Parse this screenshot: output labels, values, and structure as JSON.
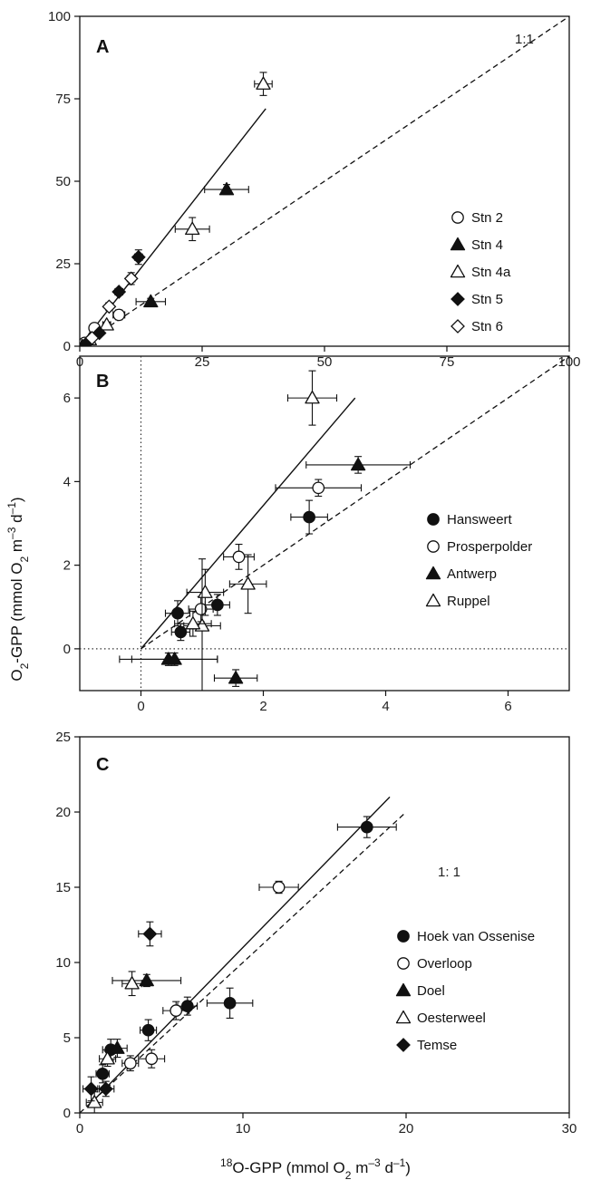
{
  "y_axis_title": {
    "base": "O",
    "sub": "2",
    "rest": "-GPP (mmol O",
    "sub2": "2",
    "rest2": " m",
    "sup": "–3",
    "rest3": " d",
    "sup2": "–1",
    "end": ")"
  },
  "x_axis_title": {
    "sup": "18",
    "base": "O-GPP (mmol O",
    "sub": "2",
    "rest": " m",
    "sup2": "–3",
    "rest2": " d",
    "sup3": "–1",
    "end": ")"
  },
  "chart_data": [
    {
      "panel": "A",
      "type": "scatter",
      "xlim": [
        0,
        100
      ],
      "ylim": [
        0,
        100
      ],
      "x_ticks": [
        0,
        25,
        50,
        75,
        100
      ],
      "y_ticks": [
        0,
        25,
        50,
        75,
        100
      ],
      "reference_line": {
        "label": "1:1",
        "slope": 1,
        "style": "dashed",
        "x_range": [
          0,
          100
        ]
      },
      "regression_line": {
        "from": [
          0,
          0
        ],
        "to": [
          38,
          72
        ],
        "style": "solid"
      },
      "legend": {
        "position": "right",
        "entries": [
          {
            "name": "Stn 2",
            "marker": "circle-open"
          },
          {
            "name": "Stn 4",
            "marker": "triangle-filled"
          },
          {
            "name": "Stn 4a",
            "marker": "triangle-open"
          },
          {
            "name": "Stn 5",
            "marker": "diamond-filled"
          },
          {
            "name": "Stn 6",
            "marker": "diamond-open"
          }
        ]
      },
      "series": [
        {
          "name": "Stn 2",
          "marker": "circle-open",
          "points": [
            {
              "x": 3,
              "y": 5.5,
              "xerr": 0.8,
              "yerr": 1.2
            },
            {
              "x": 8,
              "y": 9.5,
              "xerr": 1.2,
              "yerr": 1.5
            },
            {
              "x": 1,
              "y": 1,
              "xerr": 0.5,
              "yerr": 0.5
            }
          ]
        },
        {
          "name": "Stn 4",
          "marker": "triangle-filled",
          "points": [
            {
              "x": 30,
              "y": 47.5,
              "xerr": 4.5,
              "yerr": 1.5
            },
            {
              "x": 14.5,
              "y": 13.5,
              "xerr": 3,
              "yerr": 1
            },
            {
              "x": 0.5,
              "y": 0,
              "xerr": 0.4,
              "yerr": 0.4
            }
          ]
        },
        {
          "name": "Stn 4a",
          "marker": "triangle-open",
          "points": [
            {
              "x": 37.5,
              "y": 79.5,
              "xerr": 1.8,
              "yerr": 3.5
            },
            {
              "x": 23,
              "y": 35.5,
              "xerr": 3.5,
              "yerr": 3.5
            },
            {
              "x": 5.5,
              "y": 6.5,
              "xerr": 0.8,
              "yerr": 0.8
            },
            {
              "x": 2,
              "y": 2,
              "xerr": 0.5,
              "yerr": 0.5
            }
          ]
        },
        {
          "name": "Stn 5",
          "marker": "diamond-filled",
          "points": [
            {
              "x": 12,
              "y": 27,
              "xerr": 0.8,
              "yerr": 2.2
            },
            {
              "x": 8,
              "y": 16.5,
              "xerr": 0.8,
              "yerr": 1
            },
            {
              "x": 4,
              "y": 4,
              "xerr": 0.5,
              "yerr": 0.5
            },
            {
              "x": 1.5,
              "y": 1,
              "xerr": 0.5,
              "yerr": 0.5
            }
          ]
        },
        {
          "name": "Stn 6",
          "marker": "diamond-open",
          "points": [
            {
              "x": 10.5,
              "y": 20.5,
              "xerr": 0.8,
              "yerr": 1.8
            },
            {
              "x": 6,
              "y": 12,
              "xerr": 0.7,
              "yerr": 1.2
            },
            {
              "x": 2.5,
              "y": 2.5,
              "xerr": 0.5,
              "yerr": 0.5
            }
          ]
        }
      ]
    },
    {
      "panel": "B",
      "type": "scatter",
      "xlim": [
        -1,
        7
      ],
      "ylim": [
        -1,
        7
      ],
      "x_ticks": [
        0,
        2,
        4,
        6
      ],
      "y_ticks": [
        0,
        2,
        4,
        6
      ],
      "zero_lines": "dotted",
      "reference_line": {
        "label": "",
        "slope": 1,
        "style": "dashed",
        "x_range": [
          0,
          7
        ]
      },
      "regression_line": {
        "from": [
          0,
          0
        ],
        "to": [
          3.5,
          6
        ],
        "style": "solid"
      },
      "legend": {
        "position": "right",
        "entries": [
          {
            "name": "Hansweert",
            "marker": "circle-filled"
          },
          {
            "name": "Prosperpolder",
            "marker": "circle-open"
          },
          {
            "name": "Antwerp",
            "marker": "triangle-filled"
          },
          {
            "name": "Ruppel",
            "marker": "triangle-open"
          }
        ]
      },
      "series": [
        {
          "name": "Hansweert",
          "marker": "circle-filled",
          "points": [
            {
              "x": 2.75,
              "y": 3.15,
              "xerr": 0.3,
              "yerr": 0.4
            },
            {
              "x": 1.25,
              "y": 1.05,
              "xerr": 0.2,
              "yerr": 0.25
            },
            {
              "x": 0.6,
              "y": 0.85,
              "xerr": 0.2,
              "yerr": 0.3
            },
            {
              "x": 0.65,
              "y": 0.4,
              "xerr": 0.15,
              "yerr": 0.2
            }
          ]
        },
        {
          "name": "Prosperpolder",
          "marker": "circle-open",
          "points": [
            {
              "x": 2.9,
              "y": 3.85,
              "xerr": 0.7,
              "yerr": 0.2
            },
            {
              "x": 1.6,
              "y": 2.2,
              "xerr": 0.25,
              "yerr": 0.3
            },
            {
              "x": 0.98,
              "y": 0.95,
              "xerr": 0.2,
              "yerr": 0.3
            }
          ]
        },
        {
          "name": "Antwerp",
          "marker": "triangle-filled",
          "points": [
            {
              "x": 3.55,
              "y": 4.4,
              "xerr": 0.85,
              "yerr": 0.2
            },
            {
              "x": 1.55,
              "y": -0.7,
              "xerr": 0.35,
              "yerr": 0.2
            },
            {
              "x": 0.45,
              "y": -0.25,
              "xerr": 0.8,
              "yerr": 0.15
            },
            {
              "x": 0.55,
              "y": -0.25,
              "xerr": 0.7,
              "yerr": 0.15
            }
          ]
        },
        {
          "name": "Ruppel",
          "marker": "triangle-open",
          "points": [
            {
              "x": 2.8,
              "y": 6.0,
              "xerr": 0.4,
              "yerr": 0.65
            },
            {
              "x": 1.75,
              "y": 1.55,
              "xerr": 0.3,
              "yerr": 0.7
            },
            {
              "x": 1.05,
              "y": 1.35,
              "xerr": 0.3,
              "yerr": 0.55
            },
            {
              "x": 1.0,
              "y": 0.55,
              "xerr": 0.3,
              "yerr": 1.6
            },
            {
              "x": 0.85,
              "y": 0.6,
              "xerr": 0.3,
              "yerr": 0.3
            }
          ]
        }
      ]
    },
    {
      "panel": "C",
      "type": "scatter",
      "xlim": [
        0,
        30
      ],
      "ylim": [
        0,
        25
      ],
      "x_ticks": [
        0,
        10,
        20,
        30
      ],
      "y_ticks": [
        0,
        5,
        10,
        15,
        20,
        25
      ],
      "reference_line": {
        "label": "1: 1",
        "slope": 1,
        "style": "dashed",
        "x_range": [
          0,
          20
        ]
      },
      "regression_line": {
        "from": [
          1,
          1
        ],
        "to": [
          19,
          21
        ],
        "style": "solid"
      },
      "legend": {
        "position": "right",
        "entries": [
          {
            "name": "Hoek van Ossenise",
            "marker": "circle-filled"
          },
          {
            "name": "Overloop",
            "marker": "circle-open"
          },
          {
            "name": "Doel",
            "marker": "triangle-filled"
          },
          {
            "name": "Oesterweel",
            "marker": "triangle-open"
          },
          {
            "name": "Temse",
            "marker": "diamond-filled"
          }
        ]
      },
      "series": [
        {
          "name": "Hoek van Ossenise",
          "marker": "circle-filled",
          "points": [
            {
              "x": 17.6,
              "y": 19,
              "xerr": 1.8,
              "yerr": 0.7
            },
            {
              "x": 9.2,
              "y": 7.3,
              "xerr": 1.4,
              "yerr": 1
            },
            {
              "x": 6.6,
              "y": 7.1,
              "xerr": 0.6,
              "yerr": 0.6
            },
            {
              "x": 4.2,
              "y": 5.5,
              "xerr": 0.5,
              "yerr": 0.7
            },
            {
              "x": 1.9,
              "y": 4.2,
              "xerr": 0.5,
              "yerr": 0.7
            },
            {
              "x": 1.4,
              "y": 2.6,
              "xerr": 0.4,
              "yerr": 0.6
            }
          ]
        },
        {
          "name": "Overloop",
          "marker": "circle-open",
          "points": [
            {
              "x": 12.2,
              "y": 15,
              "xerr": 1.2,
              "yerr": 0.4
            },
            {
              "x": 5.9,
              "y": 6.8,
              "xerr": 0.8,
              "yerr": 0.6
            },
            {
              "x": 4.4,
              "y": 3.6,
              "xerr": 0.8,
              "yerr": 0.6
            },
            {
              "x": 3.1,
              "y": 3.3,
              "xerr": 0.5,
              "yerr": 0.5
            }
          ]
        },
        {
          "name": "Doel",
          "marker": "triangle-filled",
          "points": [
            {
              "x": 4.1,
              "y": 8.8,
              "xerr": 2.1,
              "yerr": 0.4
            },
            {
              "x": 2.3,
              "y": 4.3,
              "xerr": 0.6,
              "yerr": 0.6
            }
          ]
        },
        {
          "name": "Oesterweel",
          "marker": "triangle-open",
          "points": [
            {
              "x": 3.2,
              "y": 8.6,
              "xerr": 0.6,
              "yerr": 0.8
            },
            {
              "x": 1.7,
              "y": 3.6,
              "xerr": 0.5,
              "yerr": 0.5
            },
            {
              "x": 0.9,
              "y": 0.7,
              "xerr": 0.5,
              "yerr": 0.7
            }
          ]
        },
        {
          "name": "Temse",
          "marker": "diamond-filled",
          "points": [
            {
              "x": 4.3,
              "y": 11.9,
              "xerr": 0.7,
              "yerr": 0.8
            },
            {
              "x": 0.7,
              "y": 1.6,
              "xerr": 0.5,
              "yerr": 0.8
            },
            {
              "x": 1.6,
              "y": 1.6,
              "xerr": 0.5,
              "yerr": 0.5
            }
          ]
        }
      ]
    }
  ]
}
